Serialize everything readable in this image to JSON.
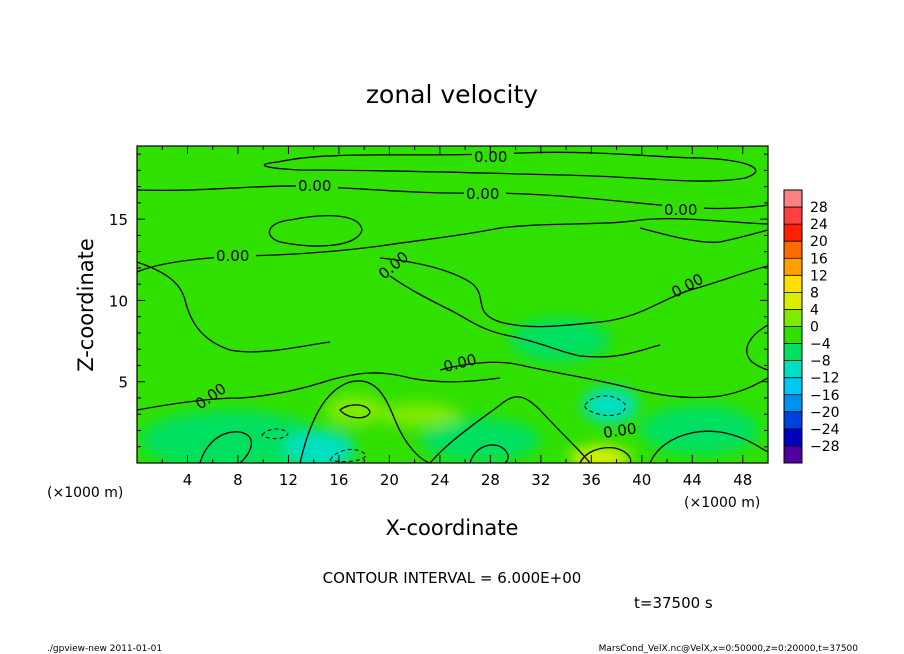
{
  "chart_data": {
    "type": "heatmap",
    "title": "zonal velocity",
    "xlabel": "X-coordinate",
    "ylabel": "Z-coordinate",
    "x_unit": "(×1000 m)",
    "y_unit": "(×1000 m)",
    "xlim": [
      0,
      50
    ],
    "ylim": [
      0,
      19.5
    ],
    "x_ticks": [
      4,
      8,
      12,
      16,
      20,
      24,
      28,
      32,
      36,
      40,
      44,
      48
    ],
    "y_ticks": [
      5,
      10,
      15
    ],
    "colorbar": {
      "levels": [
        -28,
        -24,
        -20,
        -16,
        -12,
        -8,
        -4,
        0,
        4,
        8,
        12,
        16,
        20,
        24,
        28
      ],
      "labels": [
        "28",
        "24",
        "20",
        "16",
        "12",
        "8",
        "4",
        "0",
        "−4",
        "−8",
        "−12",
        "−16",
        "−20",
        "−24",
        "−28"
      ],
      "colors": [
        "#ff8080",
        "#ff4040",
        "#ff2000",
        "#ff6a00",
        "#ffa000",
        "#ffe000",
        "#d8f000",
        "#80ea00",
        "#30e000",
        "#00e060",
        "#00e0c0",
        "#00c8f0",
        "#0090f0",
        "#0040e0",
        "#0000c0",
        "#5000a0"
      ]
    },
    "contour_label": "0.00",
    "contour_interval": "CONTOUR INTERVAL = 6.000E+00",
    "time": "t=37500 s"
  },
  "footer": {
    "left": "./gpview-new  2011-01-01",
    "right": "MarsCond_VelX.nc@VelX,x=0:50000,z=0:20000,t=37500"
  }
}
